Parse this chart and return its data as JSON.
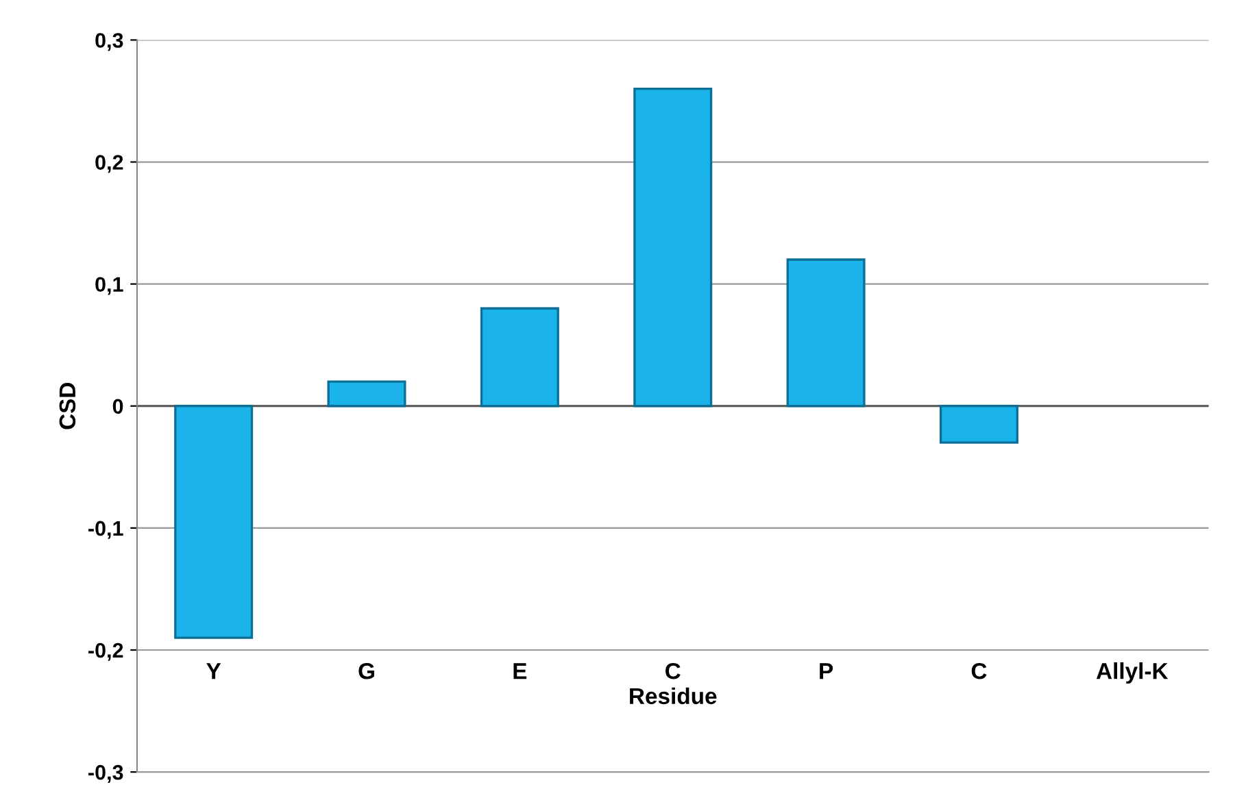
{
  "chart_data": {
    "type": "bar",
    "xlabel": "Residue",
    "ylabel": "CSD",
    "categories": [
      "Y",
      "G",
      "E",
      "C",
      "P",
      "C",
      "Allyl-K"
    ],
    "values": [
      -0.19,
      0.02,
      0.08,
      0.26,
      0.12,
      -0.03,
      null
    ],
    "color": "#1ab4ea",
    "ylim": [
      -0.3,
      0.3
    ],
    "yticks": [
      {
        "value": -0.3,
        "label": "-0,3"
      },
      {
        "value": -0.2,
        "label": "-0,2"
      },
      {
        "value": -0.1,
        "label": "-0,1"
      },
      {
        "value": 0,
        "label": "0"
      },
      {
        "value": 0.1,
        "label": "0,1"
      },
      {
        "value": 0.2,
        "label": "0,2"
      },
      {
        "value": 0.3,
        "label": "0,3"
      }
    ],
    "grid": "y"
  }
}
